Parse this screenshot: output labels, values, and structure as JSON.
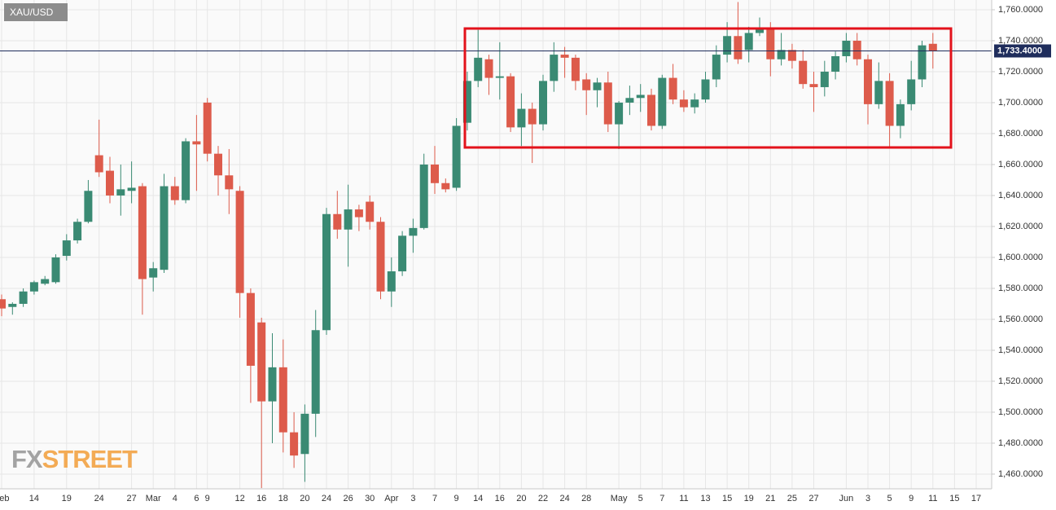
{
  "chart_data": {
    "type": "candlestick",
    "title": "XAU/USD",
    "watermark": [
      "FX",
      "STREET"
    ],
    "categories": [
      "Feb",
      null,
      null,
      "14",
      null,
      null,
      "19",
      null,
      null,
      "24",
      null,
      null,
      "27",
      null,
      "Mar",
      null,
      "4",
      null,
      "6",
      "9",
      null,
      null,
      "12",
      null,
      "16",
      null,
      "18",
      null,
      "20",
      null,
      "24",
      null,
      "26",
      null,
      "30",
      null,
      "Apr",
      null,
      "3",
      null,
      "7",
      null,
      "9",
      null,
      "14",
      null,
      "16",
      null,
      "20",
      null,
      "22",
      null,
      "24",
      null,
      "28",
      null,
      null,
      "May",
      null,
      "5",
      null,
      "7",
      null,
      "11",
      null,
      "13",
      null,
      "15",
      null,
      "19",
      null,
      "21",
      null,
      "25",
      null,
      "27",
      null,
      null,
      "Jun",
      null,
      "3",
      null,
      "5",
      null,
      "9",
      null,
      "11",
      null,
      "15",
      null,
      "17"
    ],
    "open": [
      1573,
      1568,
      1570,
      1578,
      1583,
      1584,
      1601,
      1611,
      1623,
      1666,
      1656,
      1640,
      1643,
      1646,
      1587,
      1592,
      1646,
      1637,
      1675,
      1700,
      1667,
      1653,
      1643,
      1577,
      1558,
      1507,
      1529,
      1487,
      1473,
      1499,
      1553,
      1628,
      1618,
      1631,
      1636,
      1623,
      1578,
      1591,
      1614,
      1619,
      1660,
      1648,
      1645,
      1687,
      1714,
      1728,
      1716,
      1717,
      1684,
      1696,
      1686,
      1714,
      1731,
      1729,
      1715,
      1708,
      1713,
      1686,
      1700,
      1703,
      1705,
      1685,
      1716,
      1702,
      1697,
      1702,
      1715,
      1731,
      1743,
      1734,
      1745,
      1748,
      1728,
      1734,
      1727,
      1712,
      1710,
      1720,
      1730,
      1740,
      1728,
      1699,
      1714,
      1685,
      1699,
      1715,
      1738,
      null,
      null,
      null,
      null
    ],
    "high": [
      1576,
      1571,
      1580,
      1585,
      1588,
      1602,
      1615,
      1625,
      1650,
      1689,
      1665,
      1660,
      1662,
      1648,
      1597,
      1654,
      1652,
      1677,
      1692,
      1703,
      1672,
      1670,
      1646,
      1580,
      1561,
      1551,
      1547,
      1500,
      1505,
      1566,
      1632,
      1643,
      1647,
      1634,
      1640,
      1626,
      1600,
      1617,
      1625,
      1667,
      1672,
      1651,
      1690,
      1720,
      1747,
      1731,
      1739,
      1719,
      1706,
      1700,
      1718,
      1739,
      1736,
      1731,
      1719,
      1716,
      1720,
      1701,
      1711,
      1712,
      1709,
      1718,
      1725,
      1708,
      1706,
      1720,
      1737,
      1752,
      1765,
      1749,
      1755,
      1752,
      1745,
      1738,
      1734,
      1720,
      1727,
      1733,
      1745,
      1745,
      1731,
      1726,
      1719,
      1702,
      1727,
      1740,
      1745,
      null,
      null,
      null,
      null
    ],
    "low": [
      1562,
      1563,
      1568,
      1576,
      1582,
      1583,
      1598,
      1609,
      1622,
      1652,
      1635,
      1627,
      1635,
      1563,
      1578,
      1590,
      1634,
      1635,
      1643,
      1662,
      1640,
      1628,
      1561,
      1506,
      1451,
      1480,
      1474,
      1464,
      1455,
      1484,
      1550,
      1612,
      1594,
      1617,
      1618,
      1573,
      1568,
      1588,
      1603,
      1618,
      1641,
      1642,
      1643,
      1682,
      1710,
      1705,
      1702,
      1681,
      1672,
      1661,
      1682,
      1707,
      1716,
      1708,
      1692,
      1697,
      1681,
      1670,
      1692,
      1694,
      1682,
      1683,
      1699,
      1694,
      1693,
      1700,
      1710,
      1726,
      1725,
      1726,
      1743,
      1717,
      1724,
      1722,
      1709,
      1694,
      1704,
      1715,
      1726,
      1724,
      1686,
      1696,
      1671,
      1677,
      1695,
      1710,
      1722,
      null,
      null,
      null,
      null
    ],
    "close": [
      1567,
      1570,
      1578,
      1584,
      1586,
      1600,
      1611,
      1623,
      1643,
      1655,
      1640,
      1644,
      1645,
      1586,
      1593,
      1646,
      1637,
      1675,
      1673,
      1667,
      1653,
      1644,
      1577,
      1530,
      1507,
      1529,
      1487,
      1472,
      1499,
      1553,
      1628,
      1618,
      1631,
      1626,
      1623,
      1578,
      1591,
      1614,
      1619,
      1660,
      1648,
      1644,
      1685,
      1714,
      1729,
      1716,
      1717,
      1684,
      1696,
      1686,
      1714,
      1731,
      1729,
      1714,
      1708,
      1713,
      1686,
      1700,
      1703,
      1705,
      1685,
      1716,
      1702,
      1697,
      1702,
      1715,
      1731,
      1743,
      1728,
      1745,
      1748,
      1728,
      1734,
      1727,
      1712,
      1710,
      1720,
      1730,
      1740,
      1728,
      1699,
      1714,
      1685,
      1699,
      1715,
      1737,
      1733.4,
      null,
      null,
      null,
      null
    ],
    "up_color": "#3a8a73",
    "down_color": "#dd5b4b",
    "last_price": {
      "value": 1733.4,
      "label": "1,733.4000"
    },
    "last_price_color": "#1f2d5c",
    "ylim": [
      1450.5,
      1766.3
    ],
    "yticks": [
      {
        "value": 1460,
        "label": "1,460.0000"
      },
      {
        "value": 1480,
        "label": "1,480.0000"
      },
      {
        "value": 1500,
        "label": "1,500.0000"
      },
      {
        "value": 1520,
        "label": "1,520.0000"
      },
      {
        "value": 1540,
        "label": "1,540.0000"
      },
      {
        "value": 1560,
        "label": "1,560.0000"
      },
      {
        "value": 1580,
        "label": "1,580.0000"
      },
      {
        "value": 1600,
        "label": "1,600.0000"
      },
      {
        "value": 1620,
        "label": "1,620.0000"
      },
      {
        "value": 1640,
        "label": "1,640.0000"
      },
      {
        "value": 1660,
        "label": "1,660.0000"
      },
      {
        "value": 1680,
        "label": "1,680.0000"
      },
      {
        "value": 1700,
        "label": "1,700.0000"
      },
      {
        "value": 1720,
        "label": "1,720.0000"
      },
      {
        "value": 1740,
        "label": "1,740.0000"
      },
      {
        "value": 1760,
        "label": "1,760.0000"
      }
    ],
    "grid": true
  }
}
